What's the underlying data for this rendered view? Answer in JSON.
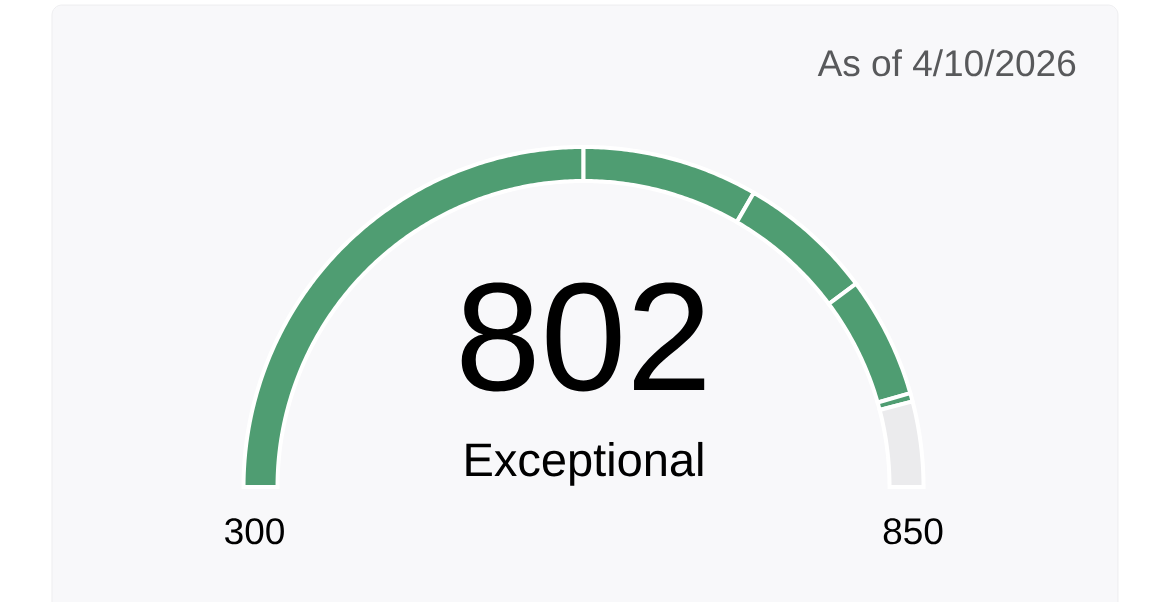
{
  "chart_data": {
    "type": "donut",
    "title": "802",
    "subtitle": "Exceptional",
    "categories": [
      null,
      null,
      null,
      null,
      null,
      null
    ],
    "values": [
      50.0,
      16.7,
      12.9,
      11.5,
      0.8,
      8.1
    ],
    "colors": [
      "#4f9d72",
      "#4f9d72",
      "#4f9d72",
      "#4f9d72",
      "#4f9d72",
      "#ebebed"
    ],
    "annotations": [
      "As of 4/10/2026",
      "300",
      "850"
    ]
  }
}
